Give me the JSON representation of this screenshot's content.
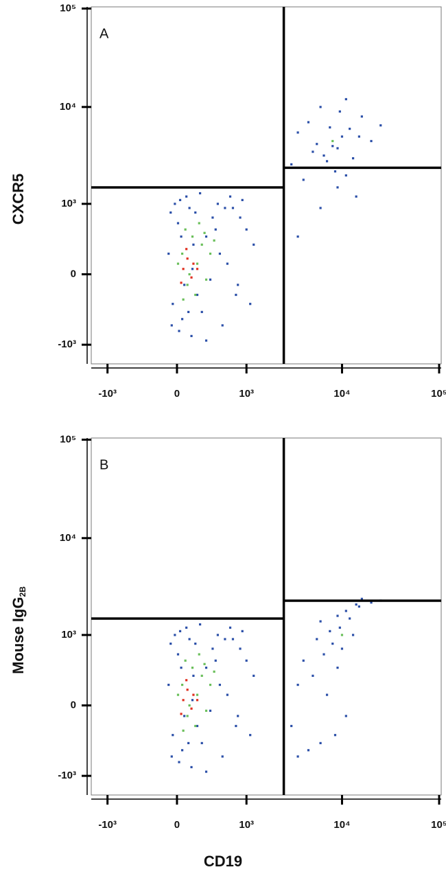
{
  "chart_data": [
    {
      "type": "scatter",
      "panel_label": "A",
      "y_label": "CXCR5",
      "xscale": "biexponential",
      "yscale": "biexponential",
      "xlim": [
        -1500,
        105000
      ],
      "ylim": [
        -1600,
        104000
      ],
      "xticks": [
        {
          "value": -1000,
          "label": "-10³"
        },
        0,
        {
          "value": 1000,
          "label": "10³"
        },
        {
          "value": 10000,
          "label": "10⁴"
        },
        {
          "value": 100000,
          "label": "10⁵"
        }
      ],
      "yticks": [
        {
          "value": -1000,
          "label": "-10³"
        },
        0,
        {
          "value": 1000,
          "label": "10³"
        },
        {
          "value": 10000,
          "label": "10⁴"
        },
        {
          "value": 100000,
          "label": "10⁵"
        }
      ],
      "gates": {
        "x": 2500,
        "y_left": 1500,
        "y_right": 2400
      },
      "series": [
        {
          "color": "#2b4fa8",
          "x": [
            -80,
            -40,
            10,
            50,
            120,
            200,
            300,
            450,
            600,
            800,
            1000,
            1200,
            -60,
            20,
            90,
            160,
            250,
            380,
            520,
            700,
            900,
            1100,
            -20,
            70,
            140,
            230,
            350,
            480,
            650,
            850,
            40,
            110,
            180,
            300,
            420,
            560,
            760,
            -50,
            30,
            150,
            3000,
            5000,
            8000,
            12000,
            7000,
            9500,
            15000,
            4500,
            6500,
            11000,
            20000,
            3500,
            8500,
            13000,
            6000,
            10000,
            16000,
            25000,
            5500,
            9000,
            7500,
            4000,
            11000,
            6000,
            9000,
            14000,
            3500
          ],
          "values": [
            200,
            -300,
            600,
            -500,
            900,
            -200,
            400,
            1000,
            100,
            -100,
            500,
            300,
            800,
            -700,
            1200,
            300,
            -400,
            700,
            -600,
            900,
            1100,
            -300,
            1000,
            -100,
            -800,
            1300,
            -50,
            200,
            1200,
            700,
            400,
            -400,
            800,
            -900,
            500,
            900,
            -200,
            -600,
            1100,
            50,
            2600,
            3500,
            4000,
            6000,
            2800,
            9000,
            5000,
            7000,
            3200,
            12000,
            4500,
            5500,
            2200,
            3000,
            10000,
            5000,
            8000,
            6500,
            4200,
            3800,
            6200,
            1800,
            2000,
            900,
            1500,
            1200,
            400
          ]
        },
        {
          "color": "#6abf5a",
          "x": [
            50,
            100,
            150,
            200,
            250,
            300,
            80,
            180,
            350,
            120,
            220,
            60,
            400,
            280,
            10,
            8000
          ],
          "values": [
            200,
            -100,
            400,
            100,
            300,
            -50,
            500,
            -200,
            200,
            0,
            600,
            -250,
            350,
            450,
            100,
            4500
          ]
        },
        {
          "color": "#e03020",
          "x": [
            60,
            100,
            140,
            40,
            200,
            90,
            160
          ],
          "values": [
            50,
            150,
            -30,
            -80,
            50,
            250,
            100
          ]
        }
      ]
    },
    {
      "type": "scatter",
      "panel_label": "B",
      "y_label": "Mouse IgG",
      "y_label_sub": "2B",
      "x_label": "CD19",
      "xscale": "biexponential",
      "yscale": "biexponential",
      "xlim": [
        -1500,
        105000
      ],
      "ylim": [
        -1600,
        104000
      ],
      "xticks": [
        {
          "value": -1000,
          "label": "-10³"
        },
        0,
        {
          "value": 1000,
          "label": "10³"
        },
        {
          "value": 10000,
          "label": "10⁴"
        },
        {
          "value": 100000,
          "label": "10⁵"
        }
      ],
      "yticks": [
        {
          "value": -1000,
          "label": "-10³"
        },
        0,
        {
          "value": 1000,
          "label": "10³"
        },
        {
          "value": 10000,
          "label": "10⁴"
        },
        {
          "value": 100000,
          "label": "10⁵"
        }
      ],
      "gates": {
        "x": 2500,
        "y_left": 1500,
        "y_right": 2300
      },
      "series": [
        {
          "color": "#2b4fa8",
          "x": [
            -80,
            -40,
            10,
            50,
            120,
            200,
            300,
            450,
            600,
            800,
            1000,
            1200,
            -60,
            20,
            90,
            160,
            250,
            380,
            520,
            700,
            900,
            1100,
            -20,
            70,
            140,
            230,
            350,
            480,
            650,
            850,
            40,
            110,
            180,
            300,
            420,
            560,
            760,
            -50,
            30,
            150,
            3000,
            5000,
            8000,
            12000,
            7000,
            9500,
            15000,
            4500,
            6500,
            11000,
            20000,
            3500,
            8500,
            13000,
            6000,
            10000,
            16000,
            25000,
            5500,
            9000,
            7500,
            4000,
            11000,
            6000,
            9000,
            14000,
            3500
          ],
          "values": [
            200,
            -300,
            600,
            -500,
            900,
            -200,
            400,
            1000,
            100,
            -100,
            500,
            300,
            800,
            -700,
            1200,
            300,
            -400,
            700,
            -600,
            900,
            1100,
            -300,
            1000,
            -100,
            -800,
            1300,
            -50,
            200,
            1200,
            700,
            400,
            -400,
            800,
            -900,
            500,
            900,
            -200,
            -600,
            1100,
            50,
            -200,
            300,
            800,
            1500,
            100,
            1200,
            2000,
            -500,
            600,
            1800,
            2200,
            200,
            -300,
            1000,
            1400,
            700,
            2400,
            2300,
            900,
            400,
            1100,
            500,
            -100,
            -400,
            1600,
            2100,
            -600
          ]
        },
        {
          "color": "#6abf5a",
          "x": [
            50,
            100,
            150,
            200,
            250,
            300,
            80,
            180,
            350,
            120,
            220,
            60,
            400,
            280,
            10,
            10000
          ],
          "values": [
            200,
            -100,
            400,
            100,
            300,
            -50,
            500,
            -200,
            200,
            0,
            600,
            -250,
            350,
            450,
            100,
            1000
          ]
        },
        {
          "color": "#e03020",
          "x": [
            60,
            100,
            140,
            40,
            200,
            90,
            160
          ],
          "values": [
            50,
            150,
            -30,
            -80,
            50,
            250,
            100
          ]
        }
      ]
    }
  ]
}
